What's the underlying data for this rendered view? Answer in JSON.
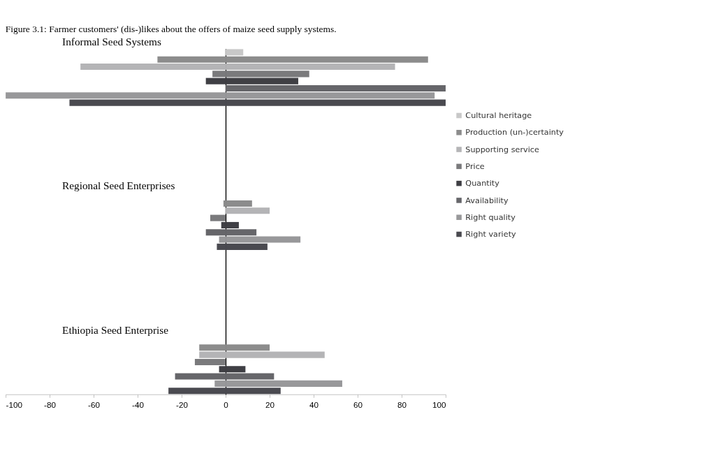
{
  "chart_data": {
    "type": "bar",
    "orientation": "horizontal",
    "title": "Figure 3.1: Farmer customers' (dis-)likes about the offers of maize seed supply systems.",
    "annotations": [
      "Informal Seed Systems",
      "Regional Seed Enterprises",
      "Ethiopia Seed Enterprise"
    ],
    "categories": [
      null,
      null,
      null,
      null,
      null,
      null,
      null,
      null,
      null,
      null,
      null,
      null,
      null,
      null,
      null,
      null,
      null,
      null,
      null,
      null,
      null,
      null,
      null,
      null,
      null,
      null,
      null,
      null,
      null,
      null,
      null,
      null,
      null,
      null,
      null,
      null,
      null,
      null,
      null,
      null,
      null,
      null,
      null,
      null,
      null,
      null,
      null,
      null
    ],
    "xlim": [
      -100,
      100
    ],
    "xticks": [
      -100,
      -80,
      -60,
      -40,
      -20,
      0,
      20,
      40,
      60,
      80,
      100
    ],
    "tick_labels": "x",
    "legend": "right",
    "series": [
      {
        "name": "Cultural heritage",
        "color": "#c8c8c8",
        "values": [
          8,
          null,
          null,
          null,
          null,
          null,
          null,
          null,
          null,
          null,
          null,
          null,
          null,
          null,
          null,
          null,
          null,
          null,
          null,
          null,
          0,
          null,
          null,
          null,
          null,
          null,
          null,
          null,
          null,
          null,
          null,
          null,
          null,
          null,
          null,
          null,
          null,
          null,
          null,
          null,
          0,
          null,
          null,
          null,
          null,
          null,
          null,
          null
        ]
      },
      {
        "name": "Production (un-)certainty",
        "color": "#8c8c8c",
        "values": [
          null,
          92,
          null,
          null,
          null,
          null,
          null,
          null,
          null,
          null,
          null,
          null,
          null,
          null,
          null,
          null,
          null,
          null,
          null,
          null,
          null,
          12,
          null,
          null,
          null,
          null,
          null,
          null,
          null,
          null,
          null,
          null,
          null,
          null,
          null,
          null,
          null,
          null,
          null,
          null,
          null,
          20,
          null,
          null,
          null,
          null,
          null,
          null
        ]
      },
      {
        "name": "Supporting service",
        "color": "#b4b4b6",
        "values": [
          null,
          null,
          77,
          null,
          null,
          null,
          null,
          null,
          null,
          null,
          null,
          null,
          null,
          null,
          null,
          null,
          null,
          null,
          null,
          null,
          null,
          null,
          20,
          null,
          null,
          null,
          null,
          null,
          null,
          null,
          null,
          null,
          null,
          null,
          null,
          null,
          null,
          null,
          null,
          null,
          null,
          null,
          45,
          null,
          null,
          null,
          null,
          null
        ]
      },
      {
        "name": "Price",
        "color": "#7a7a7c",
        "values": [
          null,
          null,
          null,
          38,
          null,
          null,
          null,
          null,
          null,
          null,
          null,
          null,
          null,
          null,
          null,
          null,
          null,
          null,
          null,
          null,
          null,
          null,
          null,
          0,
          null,
          null,
          null,
          null,
          null,
          null,
          null,
          null,
          null,
          null,
          null,
          null,
          null,
          null,
          null,
          null,
          null,
          null,
          null,
          0,
          null,
          null,
          null,
          null
        ]
      },
      {
        "name": "Quantity",
        "color": "#3f3f44",
        "values": [
          null,
          null,
          null,
          null,
          33,
          null,
          null,
          null,
          null,
          null,
          null,
          null,
          null,
          null,
          null,
          null,
          null,
          null,
          null,
          null,
          null,
          null,
          null,
          null,
          6,
          null,
          null,
          null,
          null,
          null,
          null,
          null,
          null,
          null,
          null,
          null,
          null,
          null,
          null,
          null,
          null,
          null,
          null,
          null,
          9,
          null,
          null,
          null
        ]
      },
      {
        "name": "Availability",
        "color": "#66666a",
        "values": [
          null,
          null,
          null,
          null,
          null,
          100,
          null,
          null,
          null,
          null,
          null,
          null,
          null,
          null,
          null,
          null,
          null,
          null,
          null,
          null,
          null,
          null,
          null,
          null,
          null,
          14,
          null,
          null,
          null,
          null,
          null,
          null,
          null,
          null,
          null,
          null,
          null,
          null,
          null,
          null,
          null,
          null,
          null,
          null,
          null,
          22,
          null,
          null
        ]
      },
      {
        "name": "Right quality",
        "color": "#98989a",
        "values": [
          null,
          null,
          null,
          null,
          null,
          null,
          95,
          null,
          null,
          null,
          null,
          null,
          null,
          null,
          null,
          null,
          null,
          null,
          null,
          null,
          null,
          null,
          null,
          null,
          null,
          null,
          34,
          null,
          null,
          null,
          null,
          null,
          null,
          null,
          null,
          null,
          null,
          null,
          null,
          null,
          null,
          null,
          null,
          null,
          null,
          null,
          53,
          null
        ]
      },
      {
        "name": "Right variety",
        "color": "#4a4a50",
        "values": [
          null,
          null,
          null,
          null,
          null,
          null,
          null,
          100,
          null,
          null,
          null,
          null,
          null,
          null,
          null,
          null,
          null,
          null,
          null,
          null,
          null,
          null,
          null,
          null,
          null,
          null,
          null,
          19,
          null,
          null,
          null,
          null,
          null,
          null,
          null,
          null,
          null,
          null,
          null,
          null,
          null,
          null,
          null,
          null,
          null,
          null,
          null,
          25
        ]
      },
      {
        "color": "#c8c8c8",
        "values": [
          0,
          null,
          null,
          null,
          null,
          null,
          null,
          null,
          null,
          null,
          null,
          null,
          null,
          null,
          null,
          null,
          null,
          null,
          null,
          null,
          0,
          null,
          null,
          null,
          null,
          null,
          null,
          null,
          null,
          null,
          null,
          null,
          null,
          null,
          null,
          null,
          null,
          null,
          null,
          null,
          0,
          null,
          null,
          null,
          null,
          null,
          null,
          null
        ]
      },
      {
        "color": "#8c8c8c",
        "values": [
          null,
          -31,
          null,
          null,
          null,
          null,
          null,
          null,
          null,
          null,
          null,
          null,
          null,
          null,
          null,
          null,
          null,
          null,
          null,
          null,
          null,
          -1,
          null,
          null,
          null,
          null,
          null,
          null,
          null,
          null,
          null,
          null,
          null,
          null,
          null,
          null,
          null,
          null,
          null,
          null,
          null,
          -12,
          null,
          null,
          null,
          null,
          null,
          null
        ]
      },
      {
        "color": "#b4b4b6",
        "values": [
          null,
          null,
          -66,
          null,
          null,
          null,
          null,
          null,
          null,
          null,
          null,
          null,
          null,
          null,
          null,
          null,
          null,
          null,
          null,
          null,
          null,
          null,
          0,
          null,
          null,
          null,
          null,
          null,
          null,
          null,
          null,
          null,
          null,
          null,
          null,
          null,
          null,
          null,
          null,
          null,
          null,
          null,
          -12,
          null,
          null,
          null,
          null,
          null
        ]
      },
      {
        "color": "#7a7a7c",
        "values": [
          null,
          null,
          null,
          -6,
          null,
          null,
          null,
          null,
          null,
          null,
          null,
          null,
          null,
          null,
          null,
          null,
          null,
          null,
          null,
          null,
          null,
          null,
          null,
          -7,
          null,
          null,
          null,
          null,
          null,
          null,
          null,
          null,
          null,
          null,
          null,
          null,
          null,
          null,
          null,
          null,
          null,
          null,
          null,
          -14,
          null,
          null,
          null,
          null
        ]
      },
      {
        "color": "#3f3f44",
        "values": [
          null,
          null,
          null,
          null,
          -9,
          null,
          null,
          null,
          null,
          null,
          null,
          null,
          null,
          null,
          null,
          null,
          null,
          null,
          null,
          null,
          null,
          null,
          null,
          null,
          -2,
          null,
          null,
          null,
          null,
          null,
          null,
          null,
          null,
          null,
          null,
          null,
          null,
          null,
          null,
          null,
          null,
          null,
          null,
          null,
          -3,
          null,
          null,
          null
        ]
      },
      {
        "color": "#66666a",
        "values": [
          null,
          null,
          null,
          null,
          null,
          0,
          null,
          null,
          null,
          null,
          null,
          null,
          null,
          null,
          null,
          null,
          null,
          null,
          null,
          null,
          null,
          null,
          null,
          null,
          null,
          -9,
          null,
          null,
          null,
          null,
          null,
          null,
          null,
          null,
          null,
          null,
          null,
          null,
          null,
          null,
          null,
          null,
          null,
          null,
          null,
          -23,
          null,
          null
        ]
      },
      {
        "color": "#98989a",
        "values": [
          null,
          null,
          null,
          null,
          null,
          null,
          -100,
          null,
          null,
          null,
          null,
          null,
          null,
          null,
          null,
          null,
          null,
          null,
          null,
          null,
          null,
          null,
          null,
          null,
          null,
          null,
          -3,
          null,
          null,
          null,
          null,
          null,
          null,
          null,
          null,
          null,
          null,
          null,
          null,
          null,
          null,
          null,
          null,
          null,
          null,
          null,
          -5,
          null
        ]
      },
      {
        "color": "#4a4a50",
        "values": [
          null,
          null,
          null,
          null,
          null,
          null,
          null,
          -71,
          null,
          null,
          null,
          null,
          null,
          null,
          null,
          null,
          null,
          null,
          null,
          null,
          null,
          null,
          null,
          null,
          null,
          null,
          null,
          -4,
          null,
          null,
          null,
          null,
          null,
          null,
          null,
          null,
          null,
          null,
          null,
          null,
          null,
          null,
          null,
          null,
          null,
          null,
          null,
          -26
        ]
      }
    ]
  }
}
